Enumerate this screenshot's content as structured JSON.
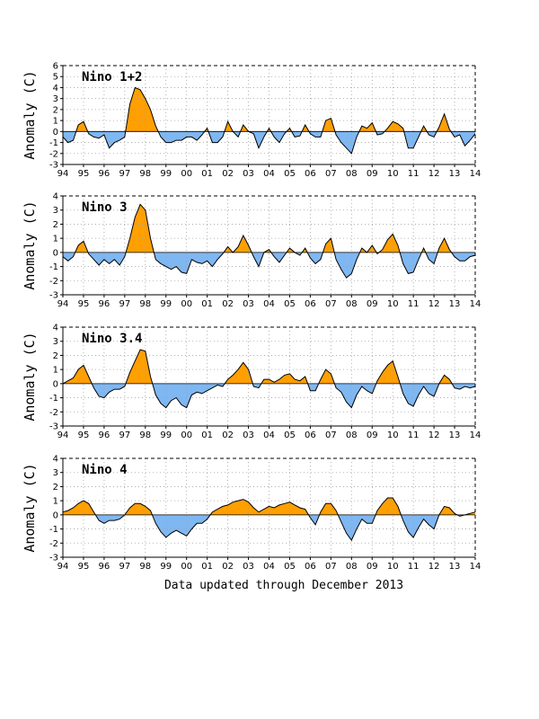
{
  "footer": "Data updated through December 2013",
  "colors": {
    "positive": "#ff9f00",
    "negative": "#7fb7f2",
    "line": "#000000",
    "grid": "#a0a0a0"
  },
  "chart_data": [
    {
      "type": "area",
      "title": "Nino 1+2",
      "ylabel": "Anomaly (C)",
      "ylim": [
        -3,
        6
      ],
      "yticks": [
        -3,
        -2,
        -1,
        0,
        1,
        2,
        3,
        4,
        5,
        6
      ],
      "xlim": [
        1994,
        2014
      ],
      "xticks": [
        "94",
        "95",
        "96",
        "97",
        "98",
        "99",
        "00",
        "01",
        "02",
        "03",
        "04",
        "05",
        "06",
        "07",
        "08",
        "09",
        "10",
        "11",
        "12",
        "13",
        "14"
      ],
      "grid": true,
      "x": [
        1994.0,
        1994.25,
        1994.5,
        1994.75,
        1995.0,
        1995.25,
        1995.5,
        1995.75,
        1996.0,
        1996.25,
        1996.5,
        1996.75,
        1997.0,
        1997.25,
        1997.5,
        1997.75,
        1998.0,
        1998.25,
        1998.5,
        1998.75,
        1999.0,
        1999.25,
        1999.5,
        1999.75,
        2000.0,
        2000.25,
        2000.5,
        2000.75,
        2001.0,
        2001.25,
        2001.5,
        2001.75,
        2002.0,
        2002.25,
        2002.5,
        2002.75,
        2003.0,
        2003.25,
        2003.5,
        2003.75,
        2004.0,
        2004.25,
        2004.5,
        2004.75,
        2005.0,
        2005.25,
        2005.5,
        2005.75,
        2006.0,
        2006.25,
        2006.5,
        2006.75,
        2007.0,
        2007.25,
        2007.5,
        2007.75,
        2008.0,
        2008.25,
        2008.5,
        2008.75,
        2009.0,
        2009.25,
        2009.5,
        2009.75,
        2010.0,
        2010.25,
        2010.5,
        2010.75,
        2011.0,
        2011.25,
        2011.5,
        2011.75,
        2012.0,
        2012.25,
        2012.5,
        2012.75,
        2013.0,
        2013.25,
        2013.5,
        2013.75,
        2014.0
      ],
      "values": [
        -0.5,
        -1.0,
        -0.8,
        0.6,
        0.9,
        -0.2,
        -0.5,
        -0.6,
        -0.3,
        -1.5,
        -1.0,
        -0.8,
        -0.5,
        2.5,
        4.0,
        3.8,
        3.0,
        2.0,
        0.5,
        -0.5,
        -1.0,
        -1.0,
        -0.8,
        -0.8,
        -0.5,
        -0.5,
        -0.8,
        -0.3,
        0.3,
        -1.0,
        -1.0,
        -0.5,
        0.9,
        0.0,
        -0.5,
        0.6,
        0.0,
        -0.2,
        -1.5,
        -0.5,
        0.3,
        -0.5,
        -1.0,
        -0.2,
        0.3,
        -0.5,
        -0.4,
        0.6,
        -0.2,
        -0.5,
        -0.5,
        1.0,
        1.2,
        -0.3,
        -1.0,
        -1.5,
        -2.0,
        -0.5,
        0.5,
        0.3,
        0.8,
        -0.3,
        -0.2,
        0.3,
        0.9,
        0.7,
        0.3,
        -1.5,
        -1.5,
        -0.5,
        0.5,
        -0.3,
        -0.5,
        0.4,
        1.6,
        0.2,
        -0.5,
        -0.3,
        -1.3,
        -0.8,
        -0.2
      ]
    },
    {
      "type": "area",
      "title": "Nino 3",
      "ylabel": "Anomaly (C)",
      "ylim": [
        -3,
        4
      ],
      "yticks": [
        -3,
        -2,
        -1,
        0,
        1,
        2,
        3,
        4
      ],
      "xlim": [
        1994,
        2014
      ],
      "xticks": [
        "94",
        "95",
        "96",
        "97",
        "98",
        "99",
        "00",
        "01",
        "02",
        "03",
        "04",
        "05",
        "06",
        "07",
        "08",
        "09",
        "10",
        "11",
        "12",
        "13",
        "14"
      ],
      "grid": true,
      "x": [
        1994.0,
        1994.25,
        1994.5,
        1994.75,
        1995.0,
        1995.25,
        1995.5,
        1995.75,
        1996.0,
        1996.25,
        1996.5,
        1996.75,
        1997.0,
        1997.25,
        1997.5,
        1997.75,
        1998.0,
        1998.25,
        1998.5,
        1998.75,
        1999.0,
        1999.25,
        1999.5,
        1999.75,
        2000.0,
        2000.25,
        2000.5,
        2000.75,
        2001.0,
        2001.25,
        2001.5,
        2001.75,
        2002.0,
        2002.25,
        2002.5,
        2002.75,
        2003.0,
        2003.25,
        2003.5,
        2003.75,
        2004.0,
        2004.25,
        2004.5,
        2004.75,
        2005.0,
        2005.25,
        2005.5,
        2005.75,
        2006.0,
        2006.25,
        2006.5,
        2006.75,
        2007.0,
        2007.25,
        2007.5,
        2007.75,
        2008.0,
        2008.25,
        2008.5,
        2008.75,
        2009.0,
        2009.25,
        2009.5,
        2009.75,
        2010.0,
        2010.25,
        2010.5,
        2010.75,
        2011.0,
        2011.25,
        2011.5,
        2011.75,
        2012.0,
        2012.25,
        2012.5,
        2012.75,
        2013.0,
        2013.25,
        2013.5,
        2013.75,
        2014.0
      ],
      "values": [
        -0.3,
        -0.6,
        -0.3,
        0.5,
        0.8,
        -0.1,
        -0.5,
        -0.9,
        -0.5,
        -0.8,
        -0.5,
        -0.9,
        -0.3,
        1.0,
        2.5,
        3.4,
        3.0,
        1.0,
        -0.5,
        -0.8,
        -1.0,
        -1.2,
        -1.0,
        -1.4,
        -1.5,
        -0.5,
        -0.7,
        -0.8,
        -0.6,
        -1.0,
        -0.5,
        -0.1,
        0.4,
        0.0,
        0.4,
        1.2,
        0.5,
        -0.3,
        -1.0,
        0.0,
        0.2,
        -0.3,
        -0.7,
        -0.2,
        0.3,
        0.0,
        -0.2,
        0.3,
        -0.4,
        -0.8,
        -0.5,
        0.6,
        1.0,
        -0.5,
        -1.2,
        -1.8,
        -1.5,
        -0.5,
        0.3,
        0.0,
        0.5,
        -0.1,
        0.2,
        0.9,
        1.3,
        0.5,
        -0.8,
        -1.5,
        -1.4,
        -0.5,
        0.3,
        -0.5,
        -0.8,
        0.3,
        1.0,
        0.2,
        -0.3,
        -0.6,
        -0.6,
        -0.3,
        -0.2
      ]
    },
    {
      "type": "area",
      "title": "Nino 3.4",
      "ylabel": "Anomaly (C)",
      "ylim": [
        -3,
        4
      ],
      "yticks": [
        -3,
        -2,
        -1,
        0,
        1,
        2,
        3,
        4
      ],
      "xlim": [
        1994,
        2014
      ],
      "xticks": [
        "94",
        "95",
        "96",
        "97",
        "98",
        "99",
        "00",
        "01",
        "02",
        "03",
        "04",
        "05",
        "06",
        "07",
        "08",
        "09",
        "10",
        "11",
        "12",
        "13",
        "14"
      ],
      "grid": true,
      "x": [
        1994.0,
        1994.25,
        1994.5,
        1994.75,
        1995.0,
        1995.25,
        1995.5,
        1995.75,
        1996.0,
        1996.25,
        1996.5,
        1996.75,
        1997.0,
        1997.25,
        1997.5,
        1997.75,
        1998.0,
        1998.25,
        1998.5,
        1998.75,
        1999.0,
        1999.25,
        1999.5,
        1999.75,
        2000.0,
        2000.25,
        2000.5,
        2000.75,
        2001.0,
        2001.25,
        2001.5,
        2001.75,
        2002.0,
        2002.25,
        2002.5,
        2002.75,
        2003.0,
        2003.25,
        2003.5,
        2003.75,
        2004.0,
        2004.25,
        2004.5,
        2004.75,
        2005.0,
        2005.25,
        2005.5,
        2005.75,
        2006.0,
        2006.25,
        2006.5,
        2006.75,
        2007.0,
        2007.25,
        2007.5,
        2007.75,
        2008.0,
        2008.25,
        2008.5,
        2008.75,
        2009.0,
        2009.25,
        2009.5,
        2009.75,
        2010.0,
        2010.25,
        2010.5,
        2010.75,
        2011.0,
        2011.25,
        2011.5,
        2011.75,
        2012.0,
        2012.25,
        2012.5,
        2012.75,
        2013.0,
        2013.25,
        2013.5,
        2013.75,
        2014.0
      ],
      "values": [
        0.0,
        0.2,
        0.4,
        1.0,
        1.3,
        0.5,
        -0.3,
        -0.9,
        -1.0,
        -0.6,
        -0.4,
        -0.4,
        -0.2,
        0.8,
        1.6,
        2.4,
        2.3,
        0.5,
        -0.8,
        -1.4,
        -1.7,
        -1.2,
        -1.0,
        -1.5,
        -1.7,
        -0.8,
        -0.6,
        -0.7,
        -0.5,
        -0.3,
        -0.1,
        -0.2,
        0.3,
        0.6,
        1.0,
        1.5,
        1.0,
        -0.2,
        -0.3,
        0.3,
        0.3,
        0.1,
        0.3,
        0.6,
        0.7,
        0.3,
        0.2,
        0.5,
        -0.5,
        -0.5,
        0.3,
        1.0,
        0.7,
        -0.3,
        -0.6,
        -1.3,
        -1.7,
        -0.8,
        -0.2,
        -0.5,
        -0.7,
        0.2,
        0.8,
        1.3,
        1.6,
        0.5,
        -0.7,
        -1.4,
        -1.6,
        -0.8,
        -0.2,
        -0.7,
        -0.9,
        0.0,
        0.6,
        0.3,
        -0.3,
        -0.4,
        -0.2,
        -0.3,
        -0.2
      ]
    },
    {
      "type": "area",
      "title": "Nino 4",
      "ylabel": "Anomaly (C)",
      "ylim": [
        -3,
        4
      ],
      "yticks": [
        -3,
        -2,
        -1,
        0,
        1,
        2,
        3,
        4
      ],
      "xlim": [
        1994,
        2014
      ],
      "xticks": [
        "94",
        "95",
        "96",
        "97",
        "98",
        "99",
        "00",
        "01",
        "02",
        "03",
        "04",
        "05",
        "06",
        "07",
        "08",
        "09",
        "10",
        "11",
        "12",
        "13",
        "14"
      ],
      "grid": true,
      "x": [
        1994.0,
        1994.25,
        1994.5,
        1994.75,
        1995.0,
        1995.25,
        1995.5,
        1995.75,
        1996.0,
        1996.25,
        1996.5,
        1996.75,
        1997.0,
        1997.25,
        1997.5,
        1997.75,
        1998.0,
        1998.25,
        1998.5,
        1998.75,
        1999.0,
        1999.25,
        1999.5,
        1999.75,
        2000.0,
        2000.25,
        2000.5,
        2000.75,
        2001.0,
        2001.25,
        2001.5,
        2001.75,
        2002.0,
        2002.25,
        2002.5,
        2002.75,
        2003.0,
        2003.25,
        2003.5,
        2003.75,
        2004.0,
        2004.25,
        2004.5,
        2004.75,
        2005.0,
        2005.25,
        2005.5,
        2005.75,
        2006.0,
        2006.25,
        2006.5,
        2006.75,
        2007.0,
        2007.25,
        2007.5,
        2007.75,
        2008.0,
        2008.25,
        2008.5,
        2008.75,
        2009.0,
        2009.25,
        2009.5,
        2009.75,
        2010.0,
        2010.25,
        2010.5,
        2010.75,
        2011.0,
        2011.25,
        2011.5,
        2011.75,
        2012.0,
        2012.25,
        2012.5,
        2012.75,
        2013.0,
        2013.25,
        2013.5,
        2013.75,
        2014.0
      ],
      "values": [
        0.2,
        0.3,
        0.5,
        0.8,
        1.0,
        0.8,
        0.2,
        -0.4,
        -0.6,
        -0.4,
        -0.4,
        -0.3,
        0.0,
        0.5,
        0.8,
        0.8,
        0.6,
        0.3,
        -0.6,
        -1.2,
        -1.6,
        -1.3,
        -1.1,
        -1.3,
        -1.5,
        -1.0,
        -0.6,
        -0.6,
        -0.3,
        0.2,
        0.4,
        0.6,
        0.7,
        0.9,
        1.0,
        1.1,
        0.9,
        0.5,
        0.2,
        0.4,
        0.6,
        0.5,
        0.7,
        0.8,
        0.9,
        0.7,
        0.5,
        0.4,
        -0.2,
        -0.7,
        0.2,
        0.8,
        0.8,
        0.3,
        -0.5,
        -1.3,
        -1.8,
        -1.0,
        -0.3,
        -0.6,
        -0.6,
        0.3,
        0.8,
        1.2,
        1.2,
        0.6,
        -0.4,
        -1.2,
        -1.6,
        -0.9,
        -0.3,
        -0.7,
        -1.0,
        0.0,
        0.6,
        0.5,
        0.1,
        -0.1,
        0.0,
        0.1,
        0.2
      ]
    }
  ]
}
